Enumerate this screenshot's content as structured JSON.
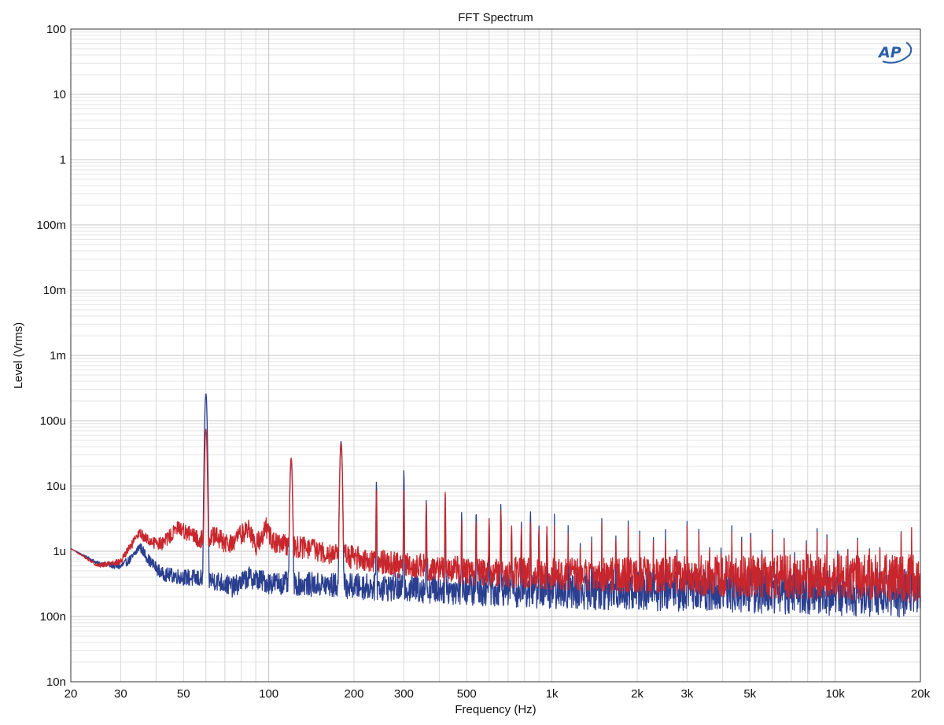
{
  "chart_data": {
    "type": "line",
    "title": "FFT Spectrum",
    "xlabel": "Frequency (Hz)",
    "ylabel": "Level (Vrms)",
    "x_scale": "log",
    "y_scale": "log",
    "xlim": [
      20,
      20000
    ],
    "ylim": [
      1e-08,
      100
    ],
    "grid": true,
    "x_ticks": [
      {
        "v": 20,
        "label": "20"
      },
      {
        "v": 30,
        "label": "30"
      },
      {
        "v": 50,
        "label": "50"
      },
      {
        "v": 100,
        "label": "100"
      },
      {
        "v": 200,
        "label": "200"
      },
      {
        "v": 300,
        "label": "300"
      },
      {
        "v": 500,
        "label": "500"
      },
      {
        "v": 1000,
        "label": "1k"
      },
      {
        "v": 2000,
        "label": "2k"
      },
      {
        "v": 3000,
        "label": "3k"
      },
      {
        "v": 5000,
        "label": "5k"
      },
      {
        "v": 10000,
        "label": "10k"
      },
      {
        "v": 20000,
        "label": "20k"
      }
    ],
    "y_ticks": [
      {
        "v": 100,
        "label": "100"
      },
      {
        "v": 10,
        "label": "10"
      },
      {
        "v": 1,
        "label": "1"
      },
      {
        "v": 0.1,
        "label": "100m"
      },
      {
        "v": 0.01,
        "label": "10m"
      },
      {
        "v": 0.001,
        "label": "1m"
      },
      {
        "v": 0.0001,
        "label": "100u"
      },
      {
        "v": 1e-05,
        "label": "10u"
      },
      {
        "v": 1e-06,
        "label": "1u"
      },
      {
        "v": 1e-07,
        "label": "100n"
      },
      {
        "v": 1e-08,
        "label": "10n"
      }
    ],
    "series": [
      {
        "color": "#2a3f8f",
        "baseline": [
          [
            20,
            1.1e-06
          ],
          [
            25,
            6.5e-07
          ],
          [
            30,
            5.8e-07
          ],
          [
            33,
            8e-07
          ],
          [
            35,
            1.2e-06
          ],
          [
            38,
            7e-07
          ],
          [
            42,
            4.5e-07
          ],
          [
            50,
            4e-07
          ],
          [
            56,
            3.8e-07
          ],
          [
            66,
            3.5e-07
          ],
          [
            75,
            2.8e-07
          ],
          [
            85,
            4e-07
          ],
          [
            100,
            3.3e-07
          ],
          [
            120,
            3.2e-07
          ],
          [
            200,
            2.9e-07
          ],
          [
            500,
            2.6e-07
          ],
          [
            1000,
            2.5e-07
          ],
          [
            5000,
            2.5e-07
          ],
          [
            20000,
            2.3e-07
          ]
        ],
        "noise_amplitude": [
          [
            20,
            0.0
          ],
          [
            60,
            0.15
          ],
          [
            200,
            0.2
          ],
          [
            1000,
            0.28
          ],
          [
            5000,
            0.35
          ],
          [
            20000,
            0.38
          ]
        ],
        "peaks": [
          [
            60,
            0.00026
          ],
          [
            120,
            2.5e-05
          ],
          [
            180,
            4.8e-05
          ],
          [
            240,
            1.2e-05
          ],
          [
            300,
            1.8e-05
          ],
          [
            360,
            6e-06
          ],
          [
            420,
            7.5e-06
          ],
          [
            480,
            4e-06
          ],
          [
            540,
            4.2e-06
          ],
          [
            600,
            3.2e-06
          ],
          [
            660,
            5.2e-06
          ],
          [
            720,
            2.3e-06
          ],
          [
            780,
            2.8e-06
          ],
          [
            840,
            4.1e-06
          ],
          [
            900,
            2.5e-06
          ],
          [
            960,
            2.3e-06
          ],
          [
            1020,
            3.9e-06
          ],
          [
            1140,
            3.2e-06
          ],
          [
            1260,
            3e-06
          ],
          [
            1380,
            2.7e-06
          ],
          [
            1500,
            3.2e-06
          ],
          [
            1680,
            2.5e-06
          ],
          [
            1860,
            2.9e-06
          ],
          [
            2040,
            2.5e-06
          ],
          [
            2280,
            2.8e-06
          ],
          [
            2520,
            3.4e-06
          ],
          [
            2760,
            2.5e-06
          ],
          [
            3000,
            2.9e-06
          ],
          [
            3300,
            2.5e-06
          ],
          [
            3600,
            2.6e-06
          ],
          [
            3960,
            2.7e-06
          ],
          [
            4320,
            2.9e-06
          ],
          [
            4680,
            2.6e-06
          ],
          [
            5040,
            2.3e-06
          ],
          [
            5520,
            2.6e-06
          ],
          [
            6000,
            2.4e-06
          ],
          [
            6600,
            2.3e-06
          ],
          [
            7200,
            2.5e-06
          ],
          [
            7920,
            2.4e-06
          ],
          [
            8640,
            2.3e-06
          ],
          [
            9360,
            2.2e-06
          ],
          [
            10200,
            2.4e-06
          ],
          [
            11100,
            2.1e-06
          ],
          [
            12000,
            2.2e-06
          ],
          [
            13200,
            2.2e-06
          ],
          [
            14400,
            2e-06
          ],
          [
            15600,
            2.1e-06
          ],
          [
            17100,
            2e-06
          ],
          [
            18600,
            2.1e-06
          ]
        ]
      },
      {
        "color": "#c8262c",
        "baseline": [
          [
            20,
            1.1e-06
          ],
          [
            25,
            6e-07
          ],
          [
            30,
            7e-07
          ],
          [
            33,
            1.3e-06
          ],
          [
            35,
            1.9e-06
          ],
          [
            38,
            1.4e-06
          ],
          [
            42,
            1.3e-06
          ],
          [
            46,
            1.9e-06
          ],
          [
            48,
            2.3e-06
          ],
          [
            52,
            1.9e-06
          ],
          [
            56,
            1.5e-06
          ],
          [
            65,
            1.7e-06
          ],
          [
            72,
            1.2e-06
          ],
          [
            85,
            2.3e-06
          ],
          [
            90,
            1.2e-06
          ],
          [
            98,
            2.3e-06
          ],
          [
            105,
            1.3e-06
          ],
          [
            140,
            1.1e-06
          ],
          [
            200,
            8e-07
          ],
          [
            300,
            6e-07
          ],
          [
            500,
            5e-07
          ],
          [
            1000,
            4.5e-07
          ],
          [
            3000,
            4.2e-07
          ],
          [
            10000,
            4e-07
          ],
          [
            20000,
            3.8e-07
          ]
        ],
        "noise_amplitude": [
          [
            20,
            0.0
          ],
          [
            60,
            0.15
          ],
          [
            200,
            0.18
          ],
          [
            1000,
            0.25
          ],
          [
            5000,
            0.33
          ],
          [
            20000,
            0.38
          ]
        ],
        "peaks": [
          [
            60,
            7.5e-05
          ],
          [
            120,
            2.7e-05
          ],
          [
            180,
            4.5e-05
          ],
          [
            240,
            9e-06
          ],
          [
            300,
            9e-06
          ],
          [
            360,
            5.5e-06
          ],
          [
            420,
            8e-06
          ],
          [
            480,
            3e-06
          ],
          [
            540,
            3.2e-06
          ],
          [
            600,
            3.2e-06
          ],
          [
            660,
            4.2e-06
          ],
          [
            720,
            2.5e-06
          ],
          [
            780,
            2.3e-06
          ],
          [
            840,
            2.8e-06
          ],
          [
            900,
            2.2e-06
          ],
          [
            960,
            2.4e-06
          ],
          [
            1020,
            2.6e-06
          ],
          [
            1140,
            2.4e-06
          ],
          [
            1260,
            2.6e-06
          ],
          [
            1380,
            2.3e-06
          ],
          [
            1500,
            2.7e-06
          ],
          [
            1680,
            2.2e-06
          ],
          [
            1860,
            2.4e-06
          ],
          [
            2040,
            2.2e-06
          ],
          [
            2280,
            2.5e-06
          ],
          [
            2520,
            2.3e-06
          ],
          [
            2760,
            2.2e-06
          ],
          [
            3000,
            2.5e-06
          ],
          [
            3300,
            2.2e-06
          ],
          [
            3600,
            2.4e-06
          ],
          [
            3960,
            2.2e-06
          ],
          [
            4320,
            2.3e-06
          ],
          [
            4680,
            2.2e-06
          ],
          [
            5040,
            2e-06
          ],
          [
            5520,
            2.2e-06
          ],
          [
            6000,
            2.1e-06
          ],
          [
            6600,
            2.2e-06
          ],
          [
            7200,
            2e-06
          ],
          [
            7920,
            2.1e-06
          ],
          [
            8640,
            2e-06
          ],
          [
            9360,
            1.9e-06
          ],
          [
            10200,
            2.1e-06
          ],
          [
            11100,
            2e-06
          ],
          [
            12000,
            2e-06
          ],
          [
            13200,
            2.1e-06
          ],
          [
            14400,
            1.9e-06
          ],
          [
            15600,
            2e-06
          ],
          [
            17100,
            1.9e-06
          ],
          [
            18600,
            3.6e-06
          ]
        ]
      }
    ]
  },
  "logo": {
    "text": "AP"
  }
}
